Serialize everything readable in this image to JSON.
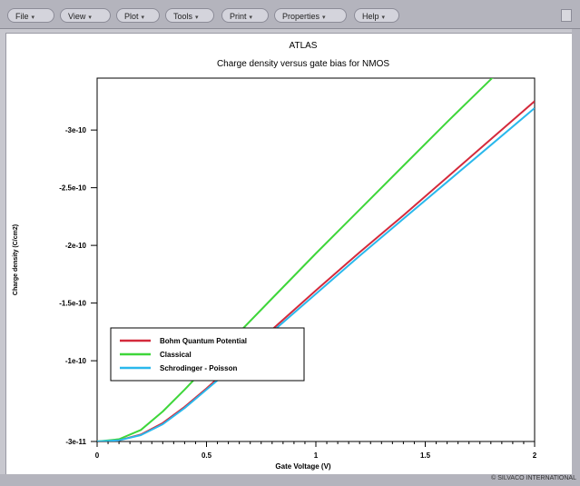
{
  "menu": {
    "file": "File",
    "view": "View",
    "plot": "Plot",
    "tools": "Tools",
    "print": "Print",
    "properties": "Properties",
    "help": "Help",
    "arrow_icon": "triangle-down-icon"
  },
  "footer": {
    "copyright": "© SILVACO INTERNATIONAL"
  },
  "chart_data": {
    "type": "line",
    "title": "ATLAS",
    "subtitle": "Charge density versus gate bias for NMOS",
    "xlabel": "Gate Voltage (V)",
    "ylabel": "Charge density (C/cm2)",
    "xlim": [
      0,
      2
    ],
    "ylim": [
      -3.45e-10,
      -3e-11
    ],
    "xticks": [
      {
        "value": 0,
        "label": "0"
      },
      {
        "value": 0.5,
        "label": "0.5"
      },
      {
        "value": 1,
        "label": "1"
      },
      {
        "value": 1.5,
        "label": "1.5"
      },
      {
        "value": 2,
        "label": "2"
      }
    ],
    "yticks": [
      {
        "value": -3e-11,
        "label": "-3e-11"
      },
      {
        "value": -1e-10,
        "label": "-1e-10"
      },
      {
        "value": -1.5e-10,
        "label": "-1.5e-10"
      },
      {
        "value": -2e-10,
        "label": "-2e-10"
      },
      {
        "value": -2.5e-10,
        "label": "-2.5e-10"
      },
      {
        "value": -3e-10,
        "label": "-3e-10"
      }
    ],
    "legend_position": "bottom-left",
    "series": [
      {
        "name": "Bohm Quantum Potential",
        "color": "#d42a3c",
        "x": [
          0,
          0.1,
          0.2,
          0.3,
          0.4,
          0.5,
          0.6,
          0.8,
          1.0,
          1.2,
          1.4,
          1.6,
          1.8,
          2.0
        ],
        "y": [
          -3e-11,
          -3.1e-11,
          -3.6e-11,
          -4.6e-11,
          -6e-11,
          -7.6e-11,
          -9.3e-11,
          -1.27e-10,
          -1.61e-10,
          -1.94e-10,
          -2.26e-10,
          -2.59e-10,
          -2.92e-10,
          -3.25e-10
        ]
      },
      {
        "name": "Classical",
        "color": "#3ed63a",
        "x": [
          0,
          0.1,
          0.2,
          0.3,
          0.4,
          0.5,
          0.6,
          0.8,
          1.0,
          1.2,
          1.4,
          1.6,
          1.8,
          2.0
        ],
        "y": [
          -3e-11,
          -3.2e-11,
          -4e-11,
          -5.6e-11,
          -7.5e-11,
          -9.5e-11,
          -1.15e-10,
          -1.54e-10,
          -1.93e-10,
          -2.31e-10,
          -2.69e-10,
          -3.07e-10,
          -3.44e-10,
          -3.82e-10
        ]
      },
      {
        "name": "Schrodinger - Poisson",
        "color": "#2ab8ec",
        "x": [
          0,
          0.1,
          0.2,
          0.3,
          0.4,
          0.5,
          0.6,
          0.8,
          1.0,
          1.2,
          1.4,
          1.6,
          1.8,
          2.0
        ],
        "y": [
          -3e-11,
          -3.1e-11,
          -3.55e-11,
          -4.5e-11,
          -5.9e-11,
          -7.5e-11,
          -9.1e-11,
          -1.25e-10,
          -1.58e-10,
          -1.91e-10,
          -2.23e-10,
          -2.55e-10,
          -2.87e-10,
          -3.19e-10
        ]
      }
    ]
  }
}
